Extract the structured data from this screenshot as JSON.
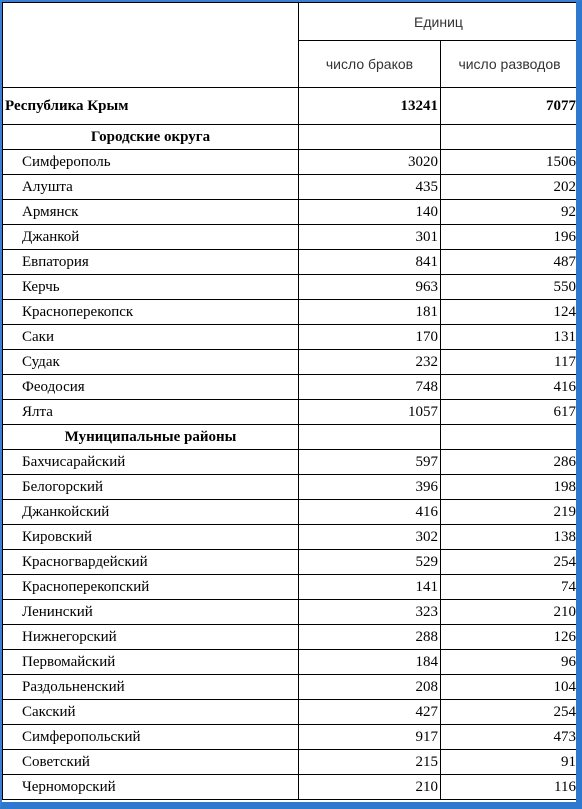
{
  "header": {
    "units": "Единиц",
    "col_marriages": "число браков",
    "col_divorces": "число разводов"
  },
  "total": {
    "name": "Республика Крым",
    "marriages": "13241",
    "divorces": "7077"
  },
  "urban": {
    "title": "Городские округа",
    "rows": [
      {
        "name": "Симферополь",
        "marriages": "3020",
        "divorces": "1506"
      },
      {
        "name": "Алушта",
        "marriages": "435",
        "divorces": "202"
      },
      {
        "name": "Армянск",
        "marriages": "140",
        "divorces": "92"
      },
      {
        "name": "Джанкой",
        "marriages": "301",
        "divorces": "196"
      },
      {
        "name": "Евпатория",
        "marriages": "841",
        "divorces": "487"
      },
      {
        "name": "Керчь",
        "marriages": "963",
        "divorces": "550"
      },
      {
        "name": "Красноперекопск",
        "marriages": "181",
        "divorces": "124"
      },
      {
        "name": "Саки",
        "marriages": "170",
        "divorces": "131"
      },
      {
        "name": "Судак",
        "marriages": "232",
        "divorces": "117"
      },
      {
        "name": "Феодосия",
        "marriages": "748",
        "divorces": "416"
      },
      {
        "name": "Ялта",
        "marriages": "1057",
        "divorces": "617"
      }
    ]
  },
  "districts": {
    "title": "Муниципальные районы",
    "rows": [
      {
        "name": "Бахчисарайский",
        "marriages": "597",
        "divorces": "286"
      },
      {
        "name": "Белогорский",
        "marriages": "396",
        "divorces": "198"
      },
      {
        "name": "Джанкойский",
        "marriages": "416",
        "divorces": "219"
      },
      {
        "name": "Кировский",
        "marriages": "302",
        "divorces": "138"
      },
      {
        "name": "Красногвардейский",
        "marriages": "529",
        "divorces": "254"
      },
      {
        "name": "Красноперекопский",
        "marriages": "141",
        "divorces": "74"
      },
      {
        "name": "Ленинский",
        "marriages": "323",
        "divorces": "210"
      },
      {
        "name": "Нижнегорский",
        "marriages": "288",
        "divorces": "126"
      },
      {
        "name": "Первомайский",
        "marriages": "184",
        "divorces": "96"
      },
      {
        "name": "Раздольненский",
        "marriages": "208",
        "divorces": "104"
      },
      {
        "name": "Сакский",
        "marriages": "427",
        "divorces": "254"
      },
      {
        "name": "Симферопольский",
        "marriages": "917",
        "divorces": "473"
      },
      {
        "name": "Советский",
        "marriages": "215",
        "divorces": "91"
      },
      {
        "name": "Черноморский",
        "marriages": "210",
        "divorces": "116"
      }
    ]
  }
}
